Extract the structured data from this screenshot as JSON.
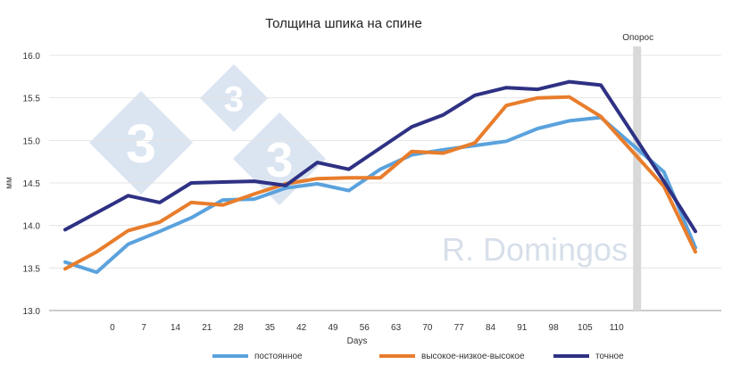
{
  "chart_data": {
    "type": "line",
    "title": "Толщина шпика на спине",
    "xlabel": "Days",
    "ylabel": "мм",
    "categories": [
      "",
      "0",
      "7",
      "14",
      "21",
      "28",
      "35",
      "42",
      "49",
      "56",
      "63",
      "70",
      "77",
      "84",
      "91",
      "98",
      "105",
      "110",
      "",
      "",
      ""
    ],
    "ylim": [
      13.0,
      16.0
    ],
    "yticks": [
      "13.0",
      "13.5",
      "14.0",
      "14.5",
      "15.0",
      "15.5",
      "16.0"
    ],
    "grid": true,
    "legend_position": "bottom",
    "series": [
      {
        "name": "постоянное",
        "color": "#5aa2dd",
        "values": [
          13.57,
          13.45,
          13.78,
          13.93,
          14.09,
          14.3,
          14.31,
          14.44,
          14.49,
          14.41,
          14.66,
          14.83,
          14.89,
          14.94,
          14.99,
          15.14,
          15.23,
          15.27,
          null,
          14.63,
          13.74
        ]
      },
      {
        "name": "высокое-низкое-высокое",
        "color": "#e87d2c",
        "values": [
          13.49,
          13.69,
          13.94,
          14.04,
          14.27,
          14.24,
          14.37,
          14.49,
          14.55,
          14.56,
          14.56,
          14.87,
          14.85,
          14.97,
          15.41,
          15.5,
          15.51,
          15.28,
          null,
          14.46,
          13.69
        ]
      },
      {
        "name": "точное",
        "color": "#2e3183",
        "values": [
          13.95,
          14.15,
          14.35,
          14.27,
          14.5,
          14.51,
          14.52,
          14.47,
          14.74,
          14.66,
          14.91,
          15.16,
          15.3,
          15.53,
          15.62,
          15.6,
          15.69,
          15.65,
          null,
          14.52,
          13.93
        ]
      }
    ],
    "annotations": [
      {
        "label": "Опорос",
        "color": "#d9d9d9"
      }
    ],
    "watermark": "R. Domingos",
    "logo_text": "3"
  }
}
